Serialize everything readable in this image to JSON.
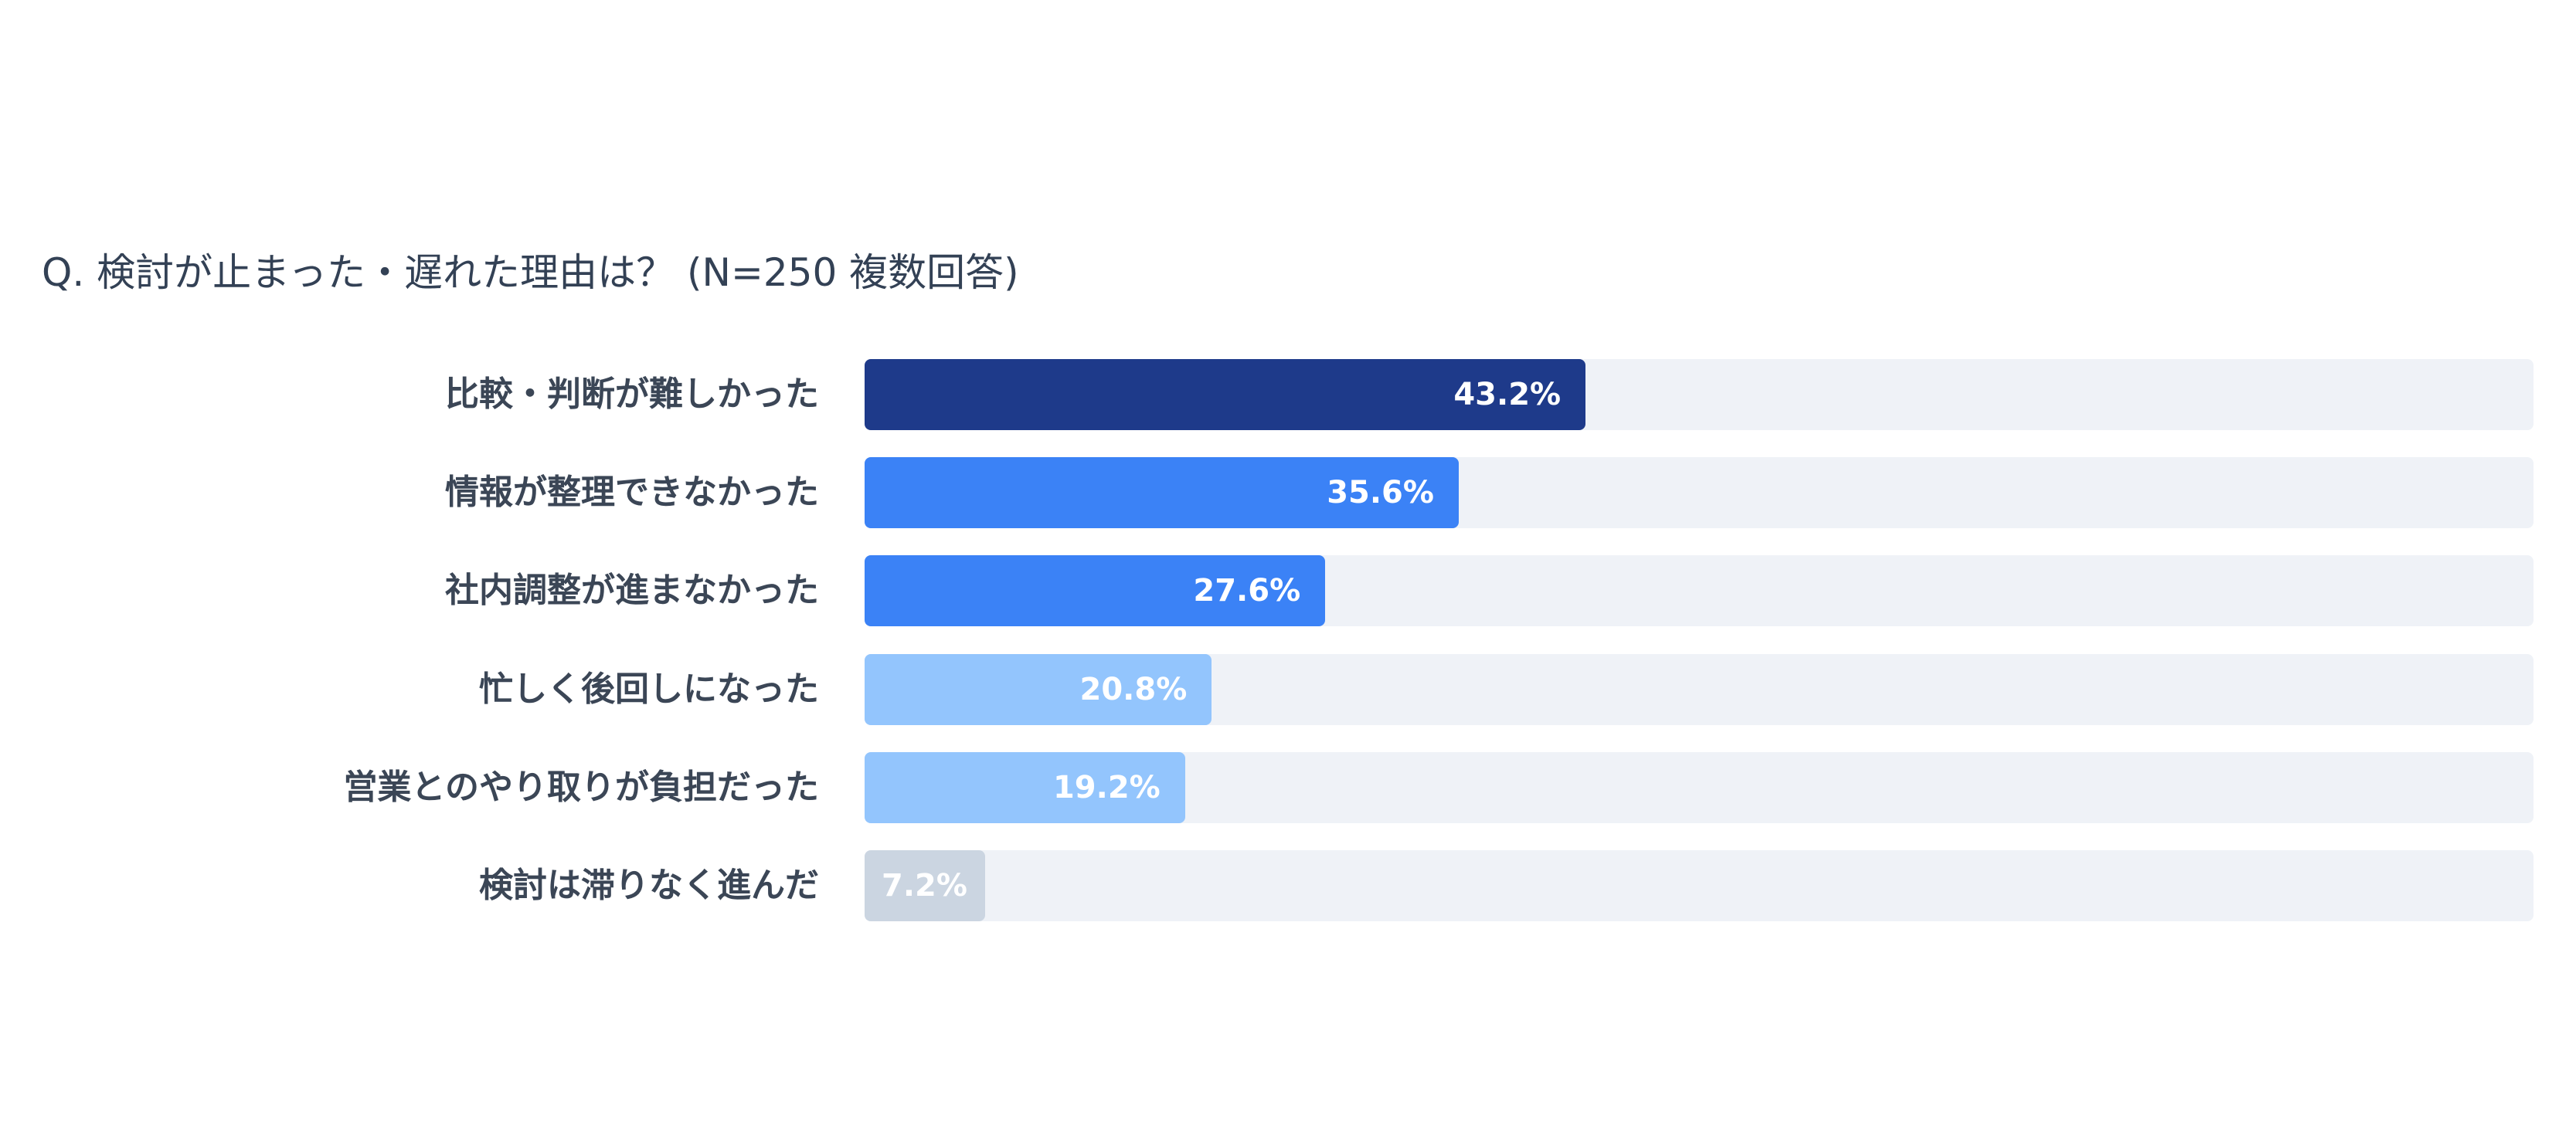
{
  "chart_data": {
    "type": "bar",
    "orientation": "horizontal",
    "title": "Q. 検討が止まった・遅れた理由は？ (N=250 複数回答)",
    "categories": [
      "比較・判断が難しかった",
      "情報が整理できなかった",
      "社内調整が進まなかった",
      "忙しく後回しになった",
      "営業とのやり取りが負担だった",
      "検討は滞りなく進んだ"
    ],
    "values": [
      43.2,
      35.6,
      27.6,
      20.8,
      19.2,
      7.2
    ],
    "value_labels": [
      "43.2%",
      "35.6%",
      "27.6%",
      "20.8%",
      "19.2%",
      "7.2%"
    ],
    "bar_colors": [
      "#1e3a8a",
      "#3b82f6",
      "#3b82f6",
      "#93c5fd",
      "#93c5fd",
      "#cbd5e1"
    ],
    "track_color": "#eff2f7",
    "xlim": [
      0,
      100
    ],
    "grid": false,
    "legend": "none"
  }
}
